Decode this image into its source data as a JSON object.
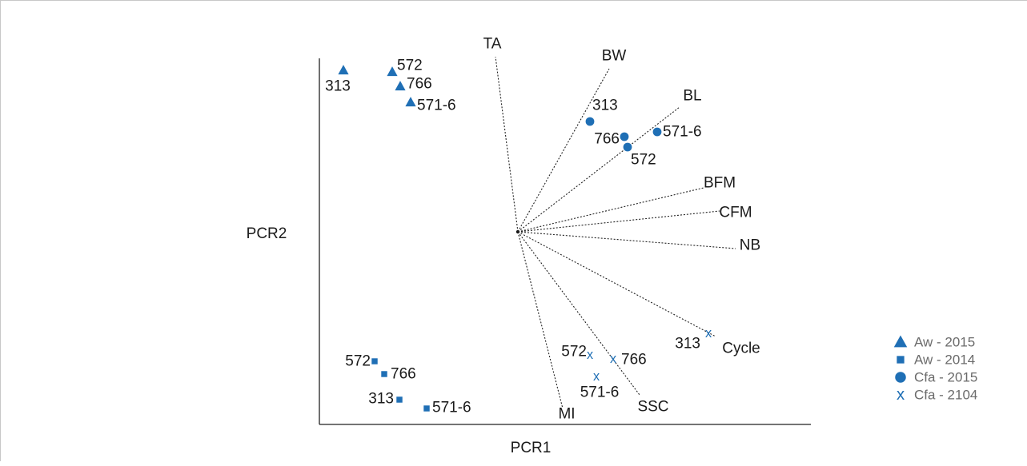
{
  "colors": {
    "marker": "#1f6fb5",
    "axis": "#222222",
    "text": "#1a1a1a",
    "legend_text": "#6b6b6b"
  },
  "chart_data": {
    "type": "scatter",
    "xlabel": "PCR1",
    "ylabel": "PCR2",
    "grid": false,
    "legend_position": "bottom-right",
    "legend": [
      {
        "label": "Aw - 2015",
        "marker": "triangle"
      },
      {
        "label": "Aw - 2014",
        "marker": "square"
      },
      {
        "label": "Cfa - 2015",
        "marker": "circle"
      },
      {
        "label": "Cfa - 2104",
        "marker": "x"
      }
    ],
    "series": [
      {
        "name": "Aw - 2015",
        "marker": "triangle",
        "points": [
          {
            "x": 428,
            "y": 87,
            "label": "313"
          },
          {
            "x": 489,
            "y": 89,
            "label": "572"
          },
          {
            "x": 499,
            "y": 107,
            "label": "766"
          },
          {
            "x": 512,
            "y": 127,
            "label": "571-6"
          }
        ]
      },
      {
        "name": "Aw - 2014",
        "marker": "square",
        "points": [
          {
            "x": 467,
            "y": 451,
            "label": "572"
          },
          {
            "x": 479,
            "y": 467,
            "label": "766"
          },
          {
            "x": 498,
            "y": 499,
            "label": "313"
          },
          {
            "x": 532,
            "y": 510,
            "label": "571-6"
          }
        ]
      },
      {
        "name": "Cfa - 2015",
        "marker": "circle",
        "points": [
          {
            "x": 736,
            "y": 151,
            "label": "313"
          },
          {
            "x": 779,
            "y": 170,
            "label": "766"
          },
          {
            "x": 783,
            "y": 183,
            "label": "572"
          },
          {
            "x": 820,
            "y": 164,
            "label": "571-6"
          }
        ]
      },
      {
        "name": "Cfa - 2104",
        "marker": "x",
        "points": [
          {
            "x": 736,
            "y": 443,
            "label": "572"
          },
          {
            "x": 765,
            "y": 448,
            "label": "766"
          },
          {
            "x": 744,
            "y": 470,
            "label": "571-6"
          },
          {
            "x": 884,
            "y": 416,
            "label": "313"
          }
        ]
      }
    ],
    "loadings": [
      {
        "label": "TA",
        "x": 618,
        "y": 70
      },
      {
        "label": "BW",
        "x": 760,
        "y": 85
      },
      {
        "label": "BL",
        "x": 848,
        "y": 133
      },
      {
        "label": "BFM",
        "x": 878,
        "y": 234
      },
      {
        "label": "CFM",
        "x": 898,
        "y": 263
      },
      {
        "label": "NB",
        "x": 918,
        "y": 310
      },
      {
        "label": "Cycle",
        "x": 893,
        "y": 420
      },
      {
        "label": "SSC",
        "x": 798,
        "y": 493
      },
      {
        "label": "MI",
        "x": 702,
        "y": 510
      }
    ]
  }
}
